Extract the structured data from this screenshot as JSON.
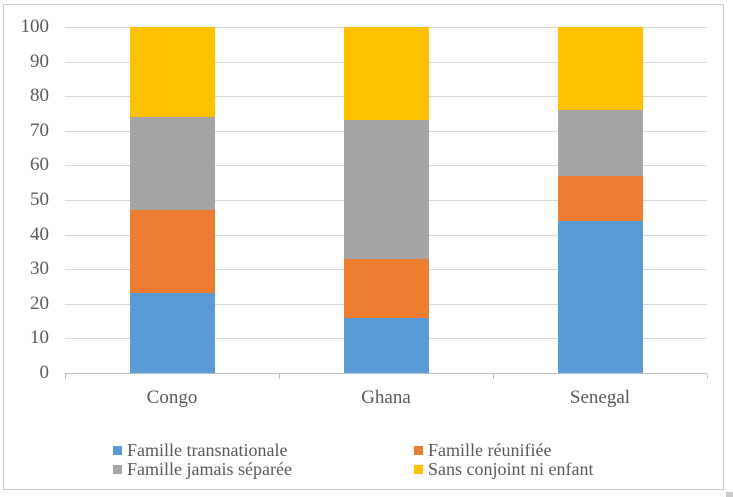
{
  "chart_data": {
    "type": "bar",
    "subtype": "stacked-column",
    "title": "",
    "xlabel": "",
    "ylabel": "",
    "categories": [
      "Congo",
      "Ghana",
      "Senegal"
    ],
    "series": [
      {
        "name": "Famille transnationale",
        "color": "#5B9BD5",
        "values": [
          23,
          16,
          44
        ]
      },
      {
        "name": "Famille réunifiée",
        "color": "#ED7D31",
        "values": [
          24,
          17,
          13
        ]
      },
      {
        "name": "Famille jamais séparée",
        "color": "#A5A5A5",
        "values": [
          27,
          40,
          19
        ]
      },
      {
        "name": "Sans conjoint ni enfant",
        "color": "#FFC000",
        "values": [
          26,
          27,
          24
        ]
      }
    ],
    "stack_totals": [
      100,
      100,
      100
    ],
    "ylim": [
      0,
      100
    ],
    "yticks": [
      0,
      10,
      20,
      30,
      40,
      50,
      60,
      70,
      80,
      90,
      100
    ],
    "grid": true,
    "legend_position": "bottom",
    "legend_columns": 2,
    "styles": {
      "gridline_color": "#D9D9D9",
      "axis_color": "#BFBFBF",
      "text_color": "#595959",
      "frame_border_color": "#C9C9C9",
      "background": "#FFFFFF"
    }
  }
}
